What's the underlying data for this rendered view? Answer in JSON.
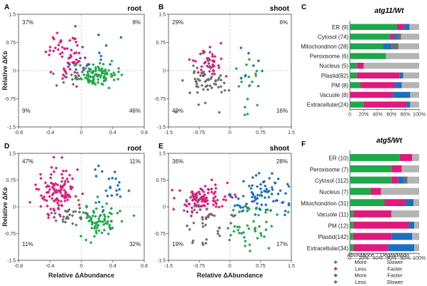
{
  "colors": {
    "more_slower": "#1ea84a",
    "less_faster": "#e0197d",
    "more_faster": "#1b6fbf",
    "less_slower": "#6d6d6d",
    "other": "#b4b4b4"
  },
  "chart_data": [
    {
      "id": "A",
      "type": "scatter",
      "panel_label": "A",
      "title": "root",
      "xlim": [
        -0.8,
        0.8
      ],
      "ylim": [
        -1.5,
        1.5
      ],
      "xticks": [
        "-0.8",
        "-0.4",
        "0",
        "0.4",
        "0.8"
      ],
      "yticks": [
        "1.5",
        "0.75",
        "0",
        "-0.75",
        "-1.5"
      ],
      "xlabel": "",
      "ylabel": "Relative ΔKᴅ",
      "quadrant_percent": {
        "top_left": "37%",
        "top_right": "8%",
        "bottom_left": "9%",
        "bottom_right": "46%"
      },
      "groups": [
        {
          "color": "less_faster",
          "n": 60,
          "cx": -0.18,
          "cy": 0.45,
          "sx": 0.12,
          "sy": 0.35
        },
        {
          "color": "more_slower",
          "n": 95,
          "cx": 0.15,
          "cy": -0.12,
          "sx": 0.14,
          "sy": 0.14
        },
        {
          "color": "more_faster",
          "n": 14,
          "cx": 0.18,
          "cy": 0.35,
          "sx": 0.12,
          "sy": 0.22
        },
        {
          "color": "less_slower",
          "n": 12,
          "cx": -0.15,
          "cy": -0.22,
          "sx": 0.16,
          "sy": 0.12
        }
      ]
    },
    {
      "id": "B",
      "type": "scatter",
      "panel_label": "B",
      "title": "shoot",
      "xlim": [
        -1.5,
        1.5
      ],
      "ylim": [
        -1.5,
        1.5
      ],
      "xticks": [
        "-1.5",
        "-0.75",
        "0",
        "0.75",
        "1.5"
      ],
      "yticks": [
        "1.5",
        "0.75",
        "0",
        "-0.75",
        "-1.5"
      ],
      "xlabel": "",
      "ylabel": "",
      "quadrant_percent": {
        "top_left": "29%",
        "top_right": "6%",
        "bottom_left": "49%",
        "bottom_right": "16%"
      },
      "groups": [
        {
          "color": "less_faster",
          "n": 40,
          "cx": -0.55,
          "cy": 0.2,
          "sx": 0.2,
          "sy": 0.22
        },
        {
          "color": "less_slower",
          "n": 60,
          "cx": -0.6,
          "cy": -0.35,
          "sx": 0.22,
          "sy": 0.28
        },
        {
          "color": "more_slower",
          "n": 20,
          "cx": 0.4,
          "cy": -0.45,
          "sx": 0.18,
          "sy": 0.35
        },
        {
          "color": "more_faster",
          "n": 7,
          "cx": 0.45,
          "cy": 0.25,
          "sx": 0.15,
          "sy": 0.2
        }
      ]
    },
    {
      "id": "C",
      "type": "bar",
      "orientation": "horizontal",
      "stacked": true,
      "panel_label": "C",
      "title": "atg11/Wt",
      "categories": [
        "ER (9)",
        "Cytosol (74)",
        "Mitochondrion (28)",
        "Peroxisome (6)",
        "Nucleus (5)",
        "Plastid(82)",
        "PM (8)",
        "Vacuole (8)",
        "Extracellular(24)"
      ],
      "xticks": [
        "0",
        "20%",
        "40%",
        "60%",
        "80%",
        "100%"
      ],
      "series": [
        {
          "color": "more_slower",
          "values": [
            68,
            58,
            48,
            52,
            10,
            10,
            15,
            0,
            20
          ]
        },
        {
          "color": "less_faster",
          "values": [
            10,
            5,
            0,
            0,
            10,
            62,
            50,
            62,
            62
          ]
        },
        {
          "color": "more_faster",
          "values": [
            8,
            5,
            12,
            0,
            0,
            5,
            10,
            25,
            5
          ]
        },
        {
          "color": "less_slower",
          "values": [
            0,
            6,
            10,
            0,
            0,
            0,
            0,
            0,
            0
          ]
        },
        {
          "color": "other",
          "values": [
            14,
            26,
            30,
            48,
            80,
            23,
            25,
            13,
            13
          ]
        }
      ]
    },
    {
      "id": "D",
      "type": "scatter",
      "panel_label": "D",
      "title": "root",
      "xlim": [
        -0.8,
        0.8
      ],
      "ylim": [
        -1.5,
        1.5
      ],
      "xticks": [
        "-0.8",
        "-0.4",
        "0",
        "0.4",
        "0.8"
      ],
      "yticks": [
        "1.5",
        "0.75",
        "0",
        "-0.75",
        "-1.5"
      ],
      "xlabel": "Relative ΔAbundance",
      "ylabel": "Relative ΔKᴅ",
      "quadrant_percent": {
        "top_left": "47%",
        "top_right": "11%",
        "bottom_left": "11%",
        "bottom_right": "32%"
      },
      "groups": [
        {
          "color": "less_faster",
          "n": 110,
          "cx": -0.3,
          "cy": 0.45,
          "sx": 0.13,
          "sy": 0.32
        },
        {
          "color": "more_slower",
          "n": 75,
          "cx": 0.2,
          "cy": -0.35,
          "sx": 0.14,
          "sy": 0.28
        },
        {
          "color": "more_faster",
          "n": 22,
          "cx": 0.35,
          "cy": 0.55,
          "sx": 0.18,
          "sy": 0.35
        },
        {
          "color": "less_slower",
          "n": 28,
          "cx": -0.15,
          "cy": -0.25,
          "sx": 0.15,
          "sy": 0.14
        }
      ]
    },
    {
      "id": "E",
      "type": "scatter",
      "panel_label": "E",
      "title": "shoot",
      "xlim": [
        -1.5,
        1.5
      ],
      "ylim": [
        -1.5,
        1.5
      ],
      "xticks": [
        "-1.5",
        "-0.75",
        "0",
        "0.75",
        "1.5"
      ],
      "yticks": [
        "1.5",
        "0.75",
        "0",
        "-0.75",
        "-1.5"
      ],
      "xlabel": "Relative ΔAbundance",
      "ylabel": "",
      "quadrant_percent": {
        "top_left": "36%",
        "top_right": "28%",
        "bottom_left": "19%",
        "bottom_right": "17%"
      },
      "groups": [
        {
          "color": "less_faster",
          "n": 95,
          "cx": -0.7,
          "cy": 0.2,
          "sx": 0.3,
          "sy": 0.22
        },
        {
          "color": "more_faster",
          "n": 80,
          "cx": 0.75,
          "cy": 0.25,
          "sx": 0.35,
          "sy": 0.3
        },
        {
          "color": "more_slower",
          "n": 45,
          "cx": 0.5,
          "cy": -0.55,
          "sx": 0.3,
          "sy": 0.4
        },
        {
          "color": "less_slower",
          "n": 40,
          "cx": -0.55,
          "cy": -0.4,
          "sx": 0.3,
          "sy": 0.35
        }
      ]
    },
    {
      "id": "F",
      "type": "bar",
      "orientation": "horizontal",
      "stacked": true,
      "panel_label": "F",
      "title": "atg5/Wt",
      "categories": [
        "ER (10)",
        "Peroxisome (7)",
        "Cytosol (112)",
        "Nucleus (7)",
        "Mitochondrion (31)",
        "Vacuole (11)",
        "PM (12)",
        "Plastid(142)",
        "Extracellular(34)"
      ],
      "xticks": [
        "0",
        "20%",
        "40%",
        "60%",
        "80%",
        "100%"
      ],
      "series": [
        {
          "color": "more_slower",
          "values": [
            72,
            60,
            60,
            30,
            50,
            5,
            5,
            5,
            5
          ]
        },
        {
          "color": "less_faster",
          "values": [
            18,
            15,
            10,
            15,
            30,
            55,
            80,
            55,
            50
          ]
        },
        {
          "color": "more_faster",
          "values": [
            0,
            0,
            8,
            0,
            12,
            0,
            8,
            30,
            38
          ]
        },
        {
          "color": "less_slower",
          "values": [
            0,
            0,
            5,
            0,
            0,
            0,
            0,
            0,
            0
          ]
        },
        {
          "color": "other",
          "values": [
            10,
            25,
            17,
            55,
            8,
            40,
            7,
            10,
            7
          ]
        }
      ]
    }
  ],
  "legend": {
    "headers": [
      "Abundance",
      "Degradation"
    ],
    "items": [
      {
        "color": "more_slower",
        "abundance": "More",
        "degradation": "Slower"
      },
      {
        "color": "less_faster",
        "abundance": "Less",
        "degradation": "Faster"
      },
      {
        "color": "more_faster",
        "abundance": "More",
        "degradation": "Faster"
      },
      {
        "color": "less_slower",
        "abundance": "Less",
        "degradation": "Slower"
      }
    ]
  }
}
